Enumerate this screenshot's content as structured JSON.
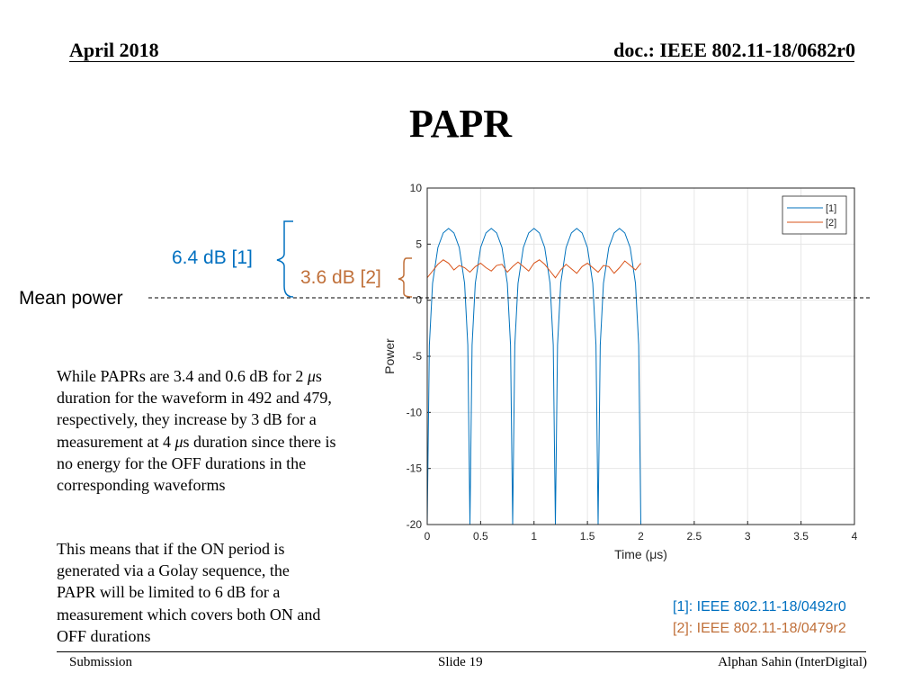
{
  "header": {
    "date": "April 2018",
    "doc": "doc.: IEEE 802.11-18/0682r0"
  },
  "title": "PAPR",
  "body": {
    "para1_a": "While PAPRs are 3.4 and 0.6 dB for 2 ",
    "mu": "μ",
    "para1_b": "s duration for the waveform  in 492 and 479, respectively, they increase by 3 dB for a measurement at 4 ",
    "para1_c": "s duration since there is no energy for the OFF durations in the corresponding waveforms",
    "para2": "This means that if the ON period is generated via a Golay sequence, the PAPR will be limited to 6 dB for a measurement which covers both ON and OFF durations"
  },
  "annotations": {
    "mean_power": "Mean power",
    "label_1": "6.4 dB [1]",
    "label_2": "3.6 dB [2]"
  },
  "references": {
    "ref1": "[1]: IEEE 802.11-18/0492r0",
    "ref2": "[2]: IEEE 802.11-18/0479r2"
  },
  "footer": {
    "left": "Submission",
    "center": "Slide 19",
    "right": "Alphan Sahin (InterDigital)"
  },
  "colors": {
    "series1": "#0072bd",
    "series2": "#d95319",
    "label1": "#0070c0",
    "label2": "#c0703a"
  },
  "chart_data": {
    "type": "line",
    "xlabel": "Time (μs)",
    "ylabel": "Power",
    "xlim": [
      0,
      4
    ],
    "ylim": [
      -20,
      10
    ],
    "xticks": [
      "0",
      "0.5",
      "1",
      "1.5",
      "2",
      "2.5",
      "3",
      "3.5",
      "4"
    ],
    "yticks": [
      "10",
      "5",
      "0",
      "-5",
      "-10",
      "-15",
      "-20"
    ],
    "grid": true,
    "legend_position": "top-right",
    "series": [
      {
        "name": "[1]",
        "description": "Power of waveform [1]: five ON lobes between 0 and 2 μs, each peaking near 6.4 dB, dropping below -20 dB between lobes",
        "x": [
          0,
          0.02,
          0.05,
          0.1,
          0.15,
          0.2,
          0.25,
          0.3,
          0.35,
          0.38,
          0.4,
          0.42,
          0.45,
          0.5,
          0.55,
          0.6,
          0.65,
          0.7,
          0.75,
          0.78,
          0.8,
          0.82,
          0.85,
          0.9,
          0.95,
          1.0,
          1.05,
          1.1,
          1.15,
          1.18,
          1.2,
          1.22,
          1.25,
          1.3,
          1.35,
          1.4,
          1.45,
          1.5,
          1.55,
          1.58,
          1.6,
          1.62,
          1.65,
          1.7,
          1.75,
          1.8,
          1.85,
          1.9,
          1.95,
          1.98,
          2.0
        ],
        "y": [
          -20,
          -4,
          1.5,
          4.7,
          6.0,
          6.4,
          6.0,
          4.7,
          1.5,
          -4,
          -20,
          -4,
          1.5,
          4.7,
          6.0,
          6.4,
          6.0,
          4.7,
          1.5,
          -4,
          -20,
          -4,
          1.5,
          4.7,
          6.0,
          6.4,
          6.0,
          4.7,
          1.5,
          -4,
          -20,
          -4,
          1.5,
          4.7,
          6.0,
          6.4,
          6.0,
          4.7,
          1.5,
          -4,
          -20,
          -4,
          1.5,
          4.7,
          6.0,
          6.4,
          6.0,
          4.7,
          1.5,
          -4,
          -20
        ]
      },
      {
        "name": "[2]",
        "description": "Power of waveform [2]: ripple between about 2 and 3.6 dB from 0 to 2 μs",
        "x": [
          0,
          0.05,
          0.1,
          0.15,
          0.2,
          0.25,
          0.3,
          0.35,
          0.4,
          0.45,
          0.5,
          0.55,
          0.6,
          0.65,
          0.7,
          0.75,
          0.8,
          0.85,
          0.9,
          0.95,
          1.0,
          1.05,
          1.1,
          1.15,
          1.2,
          1.25,
          1.3,
          1.35,
          1.4,
          1.45,
          1.5,
          1.55,
          1.6,
          1.65,
          1.7,
          1.75,
          1.8,
          1.85,
          1.9,
          1.95,
          2.0
        ],
        "y": [
          2.0,
          2.6,
          3.2,
          3.6,
          3.3,
          2.7,
          3.1,
          2.9,
          2.5,
          3.0,
          3.3,
          2.9,
          2.6,
          3.1,
          3.2,
          2.5,
          3.0,
          3.4,
          3.0,
          2.6,
          3.3,
          3.6,
          3.2,
          2.6,
          2.0,
          2.7,
          3.2,
          2.8,
          2.4,
          3.0,
          3.3,
          2.9,
          2.5,
          3.1,
          3.0,
          2.4,
          2.9,
          3.5,
          3.1,
          2.7,
          3.3
        ]
      }
    ]
  }
}
